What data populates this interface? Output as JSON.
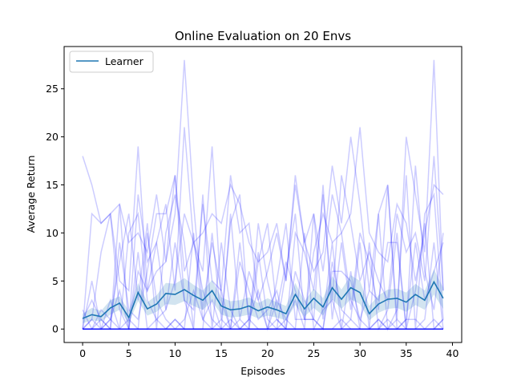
{
  "chart_data": {
    "type": "line",
    "title": "Online Evaluation on 20 Envs",
    "xlabel": "Episodes",
    "ylabel": "Average Return",
    "xlim": [
      -2,
      41
    ],
    "ylim": [
      -1.4,
      29.4
    ],
    "xticks": [
      0,
      5,
      10,
      15,
      20,
      25,
      30,
      35,
      40
    ],
    "yticks": [
      0,
      5,
      10,
      15,
      20,
      25
    ],
    "grid": false,
    "legend": {
      "position": "top-left",
      "entries": [
        "Learner"
      ]
    },
    "colors": {
      "learner": "#1f77b4",
      "band": "#1f77b4",
      "envs": "#0000ff"
    },
    "x": [
      0,
      1,
      2,
      3,
      4,
      5,
      6,
      7,
      8,
      9,
      10,
      11,
      12,
      13,
      14,
      15,
      16,
      17,
      18,
      19,
      20,
      21,
      22,
      23,
      24,
      25,
      26,
      27,
      28,
      29,
      30,
      31,
      32,
      33,
      34,
      35,
      36,
      37,
      38,
      39
    ],
    "learner": {
      "name": "Learner",
      "mean": [
        1.1,
        1.5,
        1.3,
        2.2,
        2.7,
        1.2,
        3.8,
        2.1,
        2.6,
        3.7,
        3.6,
        4.1,
        3.5,
        3.0,
        4.0,
        2.4,
        2.0,
        2.1,
        2.4,
        1.9,
        2.3,
        2.0,
        1.6,
        3.6,
        2.1,
        3.2,
        2.3,
        4.3,
        3.1,
        4.3,
        3.8,
        1.6,
        2.6,
        3.1,
        3.2,
        2.8,
        3.6,
        3.0,
        4.9,
        3.2
      ],
      "lower": [
        0.6,
        0.9,
        0.8,
        1.5,
        2.0,
        0.6,
        2.9,
        1.4,
        1.8,
        2.6,
        2.5,
        2.9,
        2.4,
        2.0,
        2.9,
        1.5,
        1.2,
        1.3,
        1.5,
        1.1,
        1.4,
        1.2,
        0.9,
        2.5,
        1.3,
        2.2,
        1.4,
        3.1,
        2.1,
        3.1,
        2.6,
        0.9,
        1.7,
        2.1,
        2.2,
        1.8,
        2.5,
        2.0,
        3.6,
        2.1
      ],
      "upper": [
        1.6,
        2.2,
        1.9,
        3.0,
        3.4,
        1.9,
        4.8,
        2.8,
        3.5,
        4.8,
        4.7,
        5.3,
        4.6,
        4.0,
        5.1,
        3.3,
        2.9,
        3.0,
        3.3,
        2.7,
        3.2,
        2.8,
        2.4,
        4.8,
        2.9,
        4.2,
        3.2,
        5.5,
        4.1,
        5.6,
        5.0,
        2.4,
        3.5,
        4.1,
        4.2,
        3.8,
        4.7,
        4.0,
        6.2,
        4.3
      ]
    },
    "envs": [
      [
        18,
        15,
        11,
        12,
        13,
        9,
        10,
        8,
        14,
        7,
        16,
        6,
        9,
        10,
        12,
        11,
        15,
        13,
        9,
        7,
        8,
        11,
        5,
        16,
        9,
        12,
        6,
        14,
        10,
        12,
        21,
        10,
        8,
        7,
        13,
        11,
        5,
        10,
        15,
        14
      ],
      [
        0,
        12,
        11,
        12,
        5,
        4,
        19,
        4,
        6,
        7,
        12,
        28,
        13,
        2,
        9,
        4,
        16,
        10,
        11,
        3,
        6,
        10,
        5,
        15,
        9,
        6,
        8,
        17,
        11,
        20,
        13,
        4,
        12,
        15,
        1,
        20,
        14,
        8,
        28,
        4
      ],
      [
        0,
        1,
        8,
        12,
        2,
        0,
        6,
        4,
        9,
        13,
        4,
        21,
        9,
        6,
        19,
        3,
        0,
        7,
        4,
        1,
        2,
        4,
        0,
        10,
        8,
        4,
        14,
        3,
        16,
        11,
        5,
        8,
        5,
        3,
        12,
        8,
        10,
        5,
        18,
        4
      ],
      [
        2,
        0,
        0,
        0,
        9,
        2,
        1,
        6,
        12,
        12,
        16,
        3,
        0,
        0,
        10,
        1,
        11,
        14,
        0,
        7,
        11,
        2,
        7,
        4,
        1,
        1,
        0,
        6,
        6,
        5,
        1,
        4,
        3,
        9,
        9,
        0,
        17,
        6,
        2,
        10
      ],
      [
        1,
        3,
        1,
        0,
        13,
        0,
        14,
        7,
        9,
        2,
        5,
        12,
        9,
        4,
        1,
        0,
        12,
        1,
        6,
        3,
        0,
        5,
        11,
        1,
        1,
        8,
        12,
        9,
        10,
        3,
        1,
        0,
        12,
        0,
        2,
        16,
        0,
        12,
        14,
        1
      ],
      [
        0,
        0,
        2,
        1,
        7,
        12,
        3,
        11,
        0,
        10,
        14,
        9,
        0,
        14,
        0,
        9,
        2,
        0,
        1,
        8,
        1,
        0,
        6,
        12,
        1,
        1,
        15,
        1,
        9,
        2,
        10,
        7,
        2,
        15,
        0,
        1,
        9,
        3,
        6,
        9
      ],
      [
        0,
        1,
        0,
        3,
        0,
        10,
        12,
        3,
        1,
        2,
        9,
        3,
        2,
        13,
        5,
        4,
        0,
        9,
        1,
        4,
        0,
        3,
        1,
        3,
        0,
        12,
        1,
        9,
        0,
        6,
        0,
        9,
        0,
        2,
        10,
        0,
        4,
        11,
        0,
        1
      ],
      [
        0,
        5,
        0,
        1,
        4,
        0,
        0,
        10,
        3,
        1,
        0,
        1,
        4,
        1,
        3,
        0,
        0,
        1,
        0,
        11,
        5,
        1,
        0,
        6,
        3,
        1,
        0,
        7,
        2,
        1,
        9,
        0,
        1,
        0,
        1,
        0,
        0,
        1,
        9,
        0
      ],
      [
        0,
        0,
        1,
        0,
        0,
        0,
        8,
        0,
        1,
        0,
        1,
        0,
        10,
        1,
        0,
        0,
        1,
        0,
        1,
        0,
        0,
        0,
        1,
        0,
        10,
        0,
        2,
        3,
        0,
        1,
        0,
        0,
        1,
        0,
        0,
        1,
        1,
        0,
        1,
        0
      ],
      [
        0,
        0,
        0,
        1,
        0,
        1,
        0,
        0,
        0,
        0,
        1,
        0,
        0,
        0,
        0,
        1,
        0,
        0,
        0,
        0,
        0,
        1,
        0,
        0,
        0,
        0,
        0,
        0,
        1,
        0,
        0,
        0,
        0,
        1,
        0,
        0,
        0,
        0,
        0,
        1
      ]
    ],
    "zero_lines": 10
  }
}
